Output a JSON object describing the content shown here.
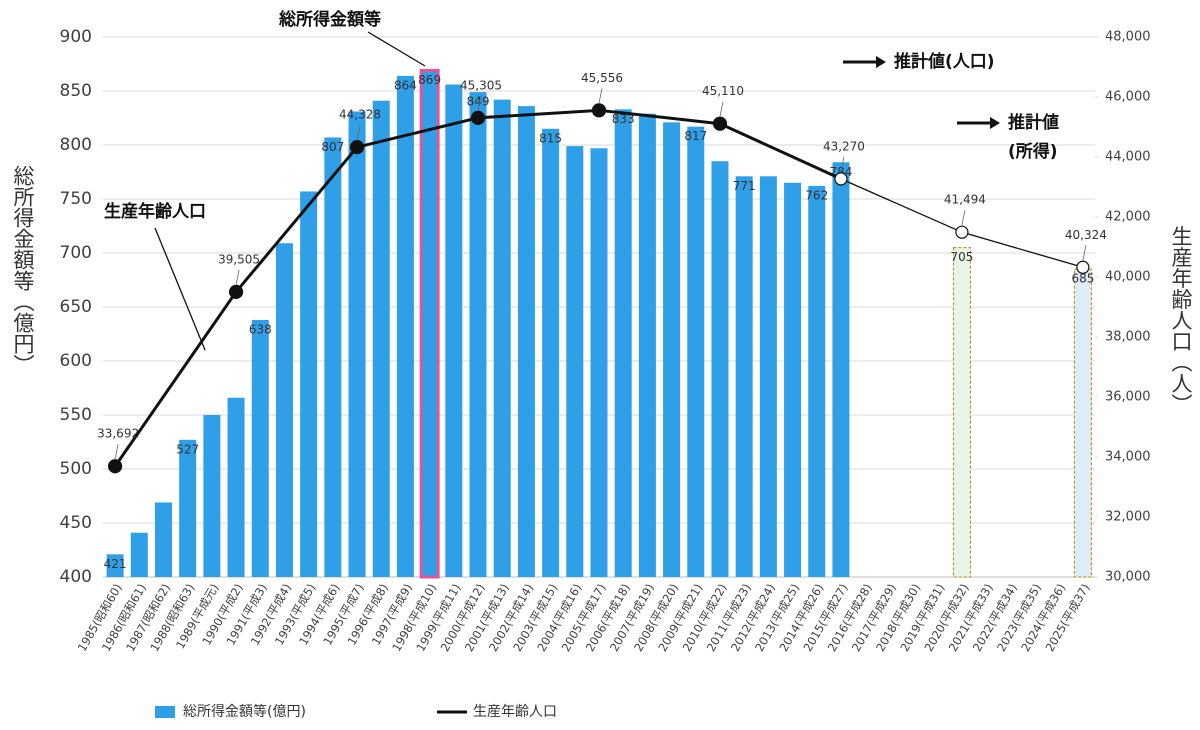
{
  "chart_data": {
    "type": "bar_line",
    "annotations": [
      "総所得金額等",
      "生産年齢人口",
      "推計値(人口)",
      "推計値",
      "(所得)"
    ],
    "y_label": "総所得金額等（億円）",
    "y2_label": "生産年齢人口（人）",
    "categories": [
      "1985(昭和60)",
      "1986(昭和61)",
      "1987(昭和62)",
      "1988(昭和63)",
      "1989(平成元)",
      "1990(平成2)",
      "1991(平成3)",
      "1992(平成4)",
      "1993(平成5)",
      "1994(平成6)",
      "1995(平成7)",
      "1996(平成8)",
      "1997(平成9)",
      "1998(平成10)",
      "1999(平成11)",
      "2000(平成12)",
      "2001(平成13)",
      "2002(平成14)",
      "2003(平成15)",
      "2004(平成16)",
      "2005(平成17)",
      "2006(平成18)",
      "2007(平成19)",
      "2008(平成20)",
      "2009(平成21)",
      "2010(平成22)",
      "2011(平成23)",
      "2012(平成24)",
      "2013(平成25)",
      "2014(平成26)",
      "2015(平成27)",
      "2016(平成28)",
      "2017(平成29)",
      "2018(平成30)",
      "2019(平成31)",
      "2020(平成32)",
      "2021(平成33)",
      "2022(平成34)",
      "2023(平成35)",
      "2024(平成36)",
      "2025(平成37)"
    ],
    "ylim": [
      400,
      900
    ],
    "yticks": [
      400,
      450,
      500,
      550,
      600,
      650,
      700,
      750,
      800,
      850,
      900
    ],
    "y2lim": [
      30000,
      48000
    ],
    "y2ticks": [
      {
        "value": 30000,
        "label": "30,000"
      },
      {
        "value": 32000,
        "label": "32,000"
      },
      {
        "value": 34000,
        "label": "34,000"
      },
      {
        "value": 36000,
        "label": "36,000"
      },
      {
        "value": 38000,
        "label": "38,000"
      },
      {
        "value": 40000,
        "label": "40,000"
      },
      {
        "value": 42000,
        "label": "42,000"
      },
      {
        "value": 44000,
        "label": "44,000"
      },
      {
        "value": 46000,
        "label": "46,000"
      },
      {
        "value": 48000,
        "label": "48,000"
      }
    ],
    "grid": true,
    "series": [
      {
        "name": "総所得金額等(億円)",
        "type": "bar",
        "color": "#2f9fe8",
        "highlight": {
          "index": 13,
          "color": "#e2559b"
        },
        "estimate_indices": [
          35,
          40
        ],
        "estimate_fills": [
          "#e6f5e6",
          "#dcedf9"
        ],
        "estimate_stroke": "#b8860b",
        "values": [
          421,
          441,
          469,
          527,
          550,
          566,
          638,
          709,
          757,
          807,
          831,
          841,
          864,
          869,
          856,
          849,
          842,
          836,
          815,
          799,
          797,
          833,
          829,
          821,
          817,
          785,
          771,
          771,
          765,
          762,
          784,
          null,
          null,
          null,
          null,
          705,
          null,
          null,
          null,
          null,
          685
        ],
        "value_labels": [
          "421",
          null,
          null,
          "527",
          null,
          null,
          "638",
          null,
          null,
          "807",
          null,
          null,
          "864",
          "869",
          null,
          "849",
          null,
          null,
          "815",
          null,
          null,
          "833",
          null,
          null,
          "817",
          null,
          "771",
          null,
          null,
          "762",
          "784",
          null,
          null,
          null,
          null,
          "705",
          null,
          null,
          null,
          null,
          "685"
        ]
      },
      {
        "name": "生産年齢人口",
        "type": "line",
        "axis": "y2",
        "color": "#111111",
        "estimate_from": 6,
        "x": [
          "1985(昭和60)",
          "1990(平成2)",
          "1995(平成7)",
          "2000(平成12)",
          "2005(平成17)",
          "2010(平成22)",
          "2015(平成27)",
          "2020(平成32)",
          "2025(平成37)"
        ],
        "values": [
          33692,
          39505,
          44328,
          45305,
          45556,
          45110,
          43270,
          41494,
          40324
        ],
        "value_labels": [
          "33,692",
          "39,505",
          "44,328",
          "45,305",
          "45,556",
          "45,110",
          "43,270",
          "41,494",
          "40,324"
        ]
      }
    ]
  }
}
